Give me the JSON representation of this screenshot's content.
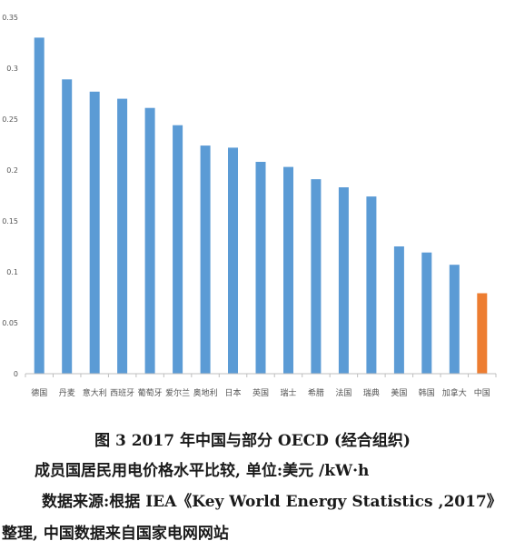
{
  "chart_data": {
    "type": "bar",
    "categories": [
      "德国",
      "丹麦",
      "意大利",
      "西班牙",
      "葡萄牙",
      "爱尔兰",
      "奥地利",
      "日本",
      "英国",
      "瑞士",
      "希腊",
      "法国",
      "瑞典",
      "美国",
      "韩国",
      "加拿大",
      "中国"
    ],
    "values": [
      0.33,
      0.289,
      0.277,
      0.27,
      0.261,
      0.244,
      0.224,
      0.222,
      0.208,
      0.203,
      0.191,
      0.183,
      0.174,
      0.125,
      0.119,
      0.107,
      0.079
    ],
    "ylim": [
      0,
      0.35
    ],
    "yticks": [
      "0",
      "0.05",
      "0.1",
      "0.15",
      "0.2",
      "0.25",
      "0.3",
      "0.35"
    ],
    "bar_color": "#5b9bd5",
    "highlight_color": "#ed7d31",
    "highlight_category": "中国",
    "grid": false,
    "title": "",
    "xlabel": "",
    "ylabel": ""
  },
  "caption": {
    "line1": "图 3    2017 年中国与部分 OECD (经合组织)",
    "line2": "成员国居民用电价格水平比较, 单位:美元 /kW·h",
    "line3": "数据来源:根据 IEA《Key World Energy Statistics ,2017》",
    "line4": "整理, 中国数据来自国家电网网站"
  }
}
